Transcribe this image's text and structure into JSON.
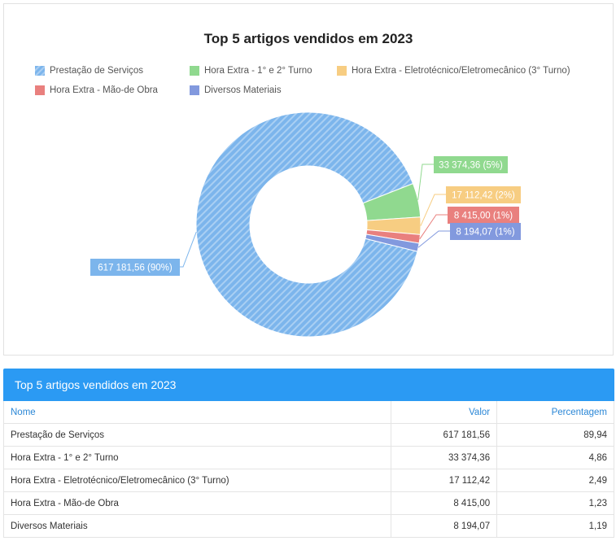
{
  "chart_data": {
    "type": "pie",
    "title": "Top 5 artigos vendidos em 2023",
    "donut": true,
    "legend_position": "top",
    "series": [
      {
        "name": "Prestação de Serviços",
        "value": 617181.56,
        "percent": 90,
        "label": "617 181,56 (90%)",
        "color": "#7cb5ec"
      },
      {
        "name": "Hora Extra - 1° e 2° Turno",
        "value": 33374.36,
        "percent": 5,
        "label": "33 374,36 (5%)",
        "color": "#90d98f"
      },
      {
        "name": "Hora Extra - Eletrotécnico/Eletromecânico (3° Turno)",
        "value": 17112.42,
        "percent": 2,
        "label": "17 112,42 (2%)",
        "color": "#f7cd82"
      },
      {
        "name": "Hora Extra - Mão-de Obra",
        "value": 8415.0,
        "percent": 1,
        "label": "8 415,00 (1%)",
        "color": "#e9807e"
      },
      {
        "name": "Diversos Materiais",
        "value": 8194.07,
        "percent": 1,
        "label": "8 194,07 (1%)",
        "color": "#8299de"
      }
    ]
  },
  "table": {
    "title": "Top 5 artigos vendidos em 2023",
    "headers": {
      "nome": "Nome",
      "valor": "Valor",
      "percentagem": "Percentagem"
    },
    "rows": [
      {
        "nome": "Prestação de Serviços",
        "valor": "617 181,56",
        "percentagem": "89,94"
      },
      {
        "nome": "Hora Extra - 1° e 2° Turno",
        "valor": "33 374,36",
        "percentagem": "4,86"
      },
      {
        "nome": "Hora Extra - Eletrotécnico/Eletromecânico (3° Turno)",
        "valor": "17 112,42",
        "percentagem": "2,49"
      },
      {
        "nome": "Hora Extra - Mão-de Obra",
        "valor": "8 415,00",
        "percentagem": "1,23"
      },
      {
        "nome": "Diversos Materiais",
        "valor": "8 194,07",
        "percentagem": "1,19"
      }
    ]
  }
}
